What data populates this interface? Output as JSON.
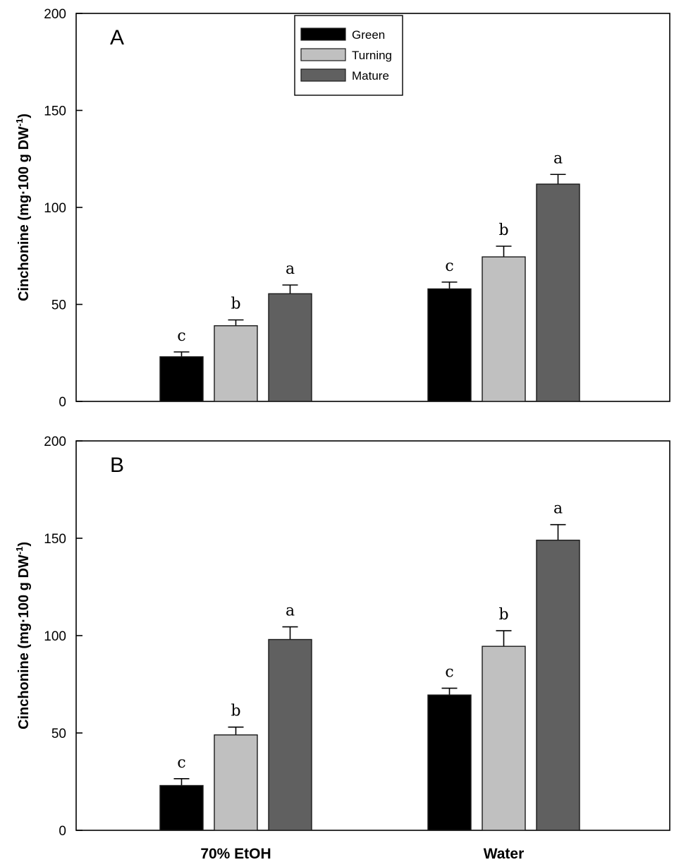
{
  "chart_data": [
    {
      "type": "bar",
      "panel_label": "A",
      "ylabel": "Cinchonine (mg·100 g DW",
      "ylabel_sup": "-1",
      "ylabel_close": ")",
      "ylim": [
        0,
        200
      ],
      "yticks": [
        0,
        50,
        100,
        150,
        200
      ],
      "categories": [
        "70% EtOH",
        "Water"
      ],
      "show_category_labels": false,
      "legend": {
        "placement": "top-center",
        "entries": [
          "Green",
          "Turning",
          "Mature"
        ]
      },
      "series": [
        {
          "name": "Green",
          "color": "#000000",
          "values": [
            23,
            58
          ],
          "errors": [
            2.5,
            3.5
          ],
          "letters": [
            "c",
            "c"
          ]
        },
        {
          "name": "Turning",
          "color": "#c0c0c0",
          "values": [
            39,
            74.5
          ],
          "errors": [
            3,
            5.5
          ],
          "letters": [
            "b",
            "b"
          ]
        },
        {
          "name": "Mature",
          "color": "#606060",
          "values": [
            55.5,
            112
          ],
          "errors": [
            4.5,
            5
          ],
          "letters": [
            "a",
            "a"
          ]
        }
      ]
    },
    {
      "type": "bar",
      "panel_label": "B",
      "ylabel": "Cinchonine (mg·100 g DW",
      "ylabel_sup": "-1",
      "ylabel_close": ")",
      "ylim": [
        0,
        200
      ],
      "yticks": [
        0,
        50,
        100,
        150,
        200
      ],
      "categories": [
        "70% EtOH",
        "Water"
      ],
      "show_category_labels": true,
      "series": [
        {
          "name": "Green",
          "color": "#000000",
          "values": [
            23,
            69.5
          ],
          "errors": [
            3.5,
            3.5
          ],
          "letters": [
            "c",
            "c"
          ]
        },
        {
          "name": "Turning",
          "color": "#c0c0c0",
          "values": [
            49,
            94.5
          ],
          "errors": [
            4,
            8
          ],
          "letters": [
            "b",
            "b"
          ]
        },
        {
          "name": "Mature",
          "color": "#606060",
          "values": [
            98,
            149
          ],
          "errors": [
            6.5,
            8
          ],
          "letters": [
            "a",
            "a"
          ]
        }
      ]
    }
  ]
}
